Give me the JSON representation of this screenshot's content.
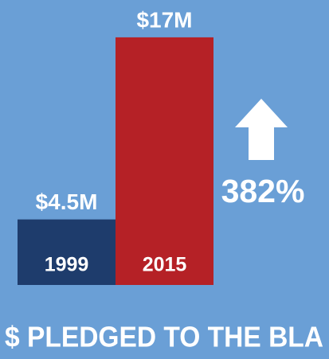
{
  "chart_data": {
    "type": "bar",
    "title": "$ PLEDGED TO THE BLA",
    "categories": [
      "1999",
      "2015"
    ],
    "values": [
      4.5,
      17
    ],
    "value_labels": [
      "$4.5M",
      "$17M"
    ],
    "colors": [
      "#1e3c6c",
      "#b52126"
    ],
    "annotation": "382%"
  }
}
